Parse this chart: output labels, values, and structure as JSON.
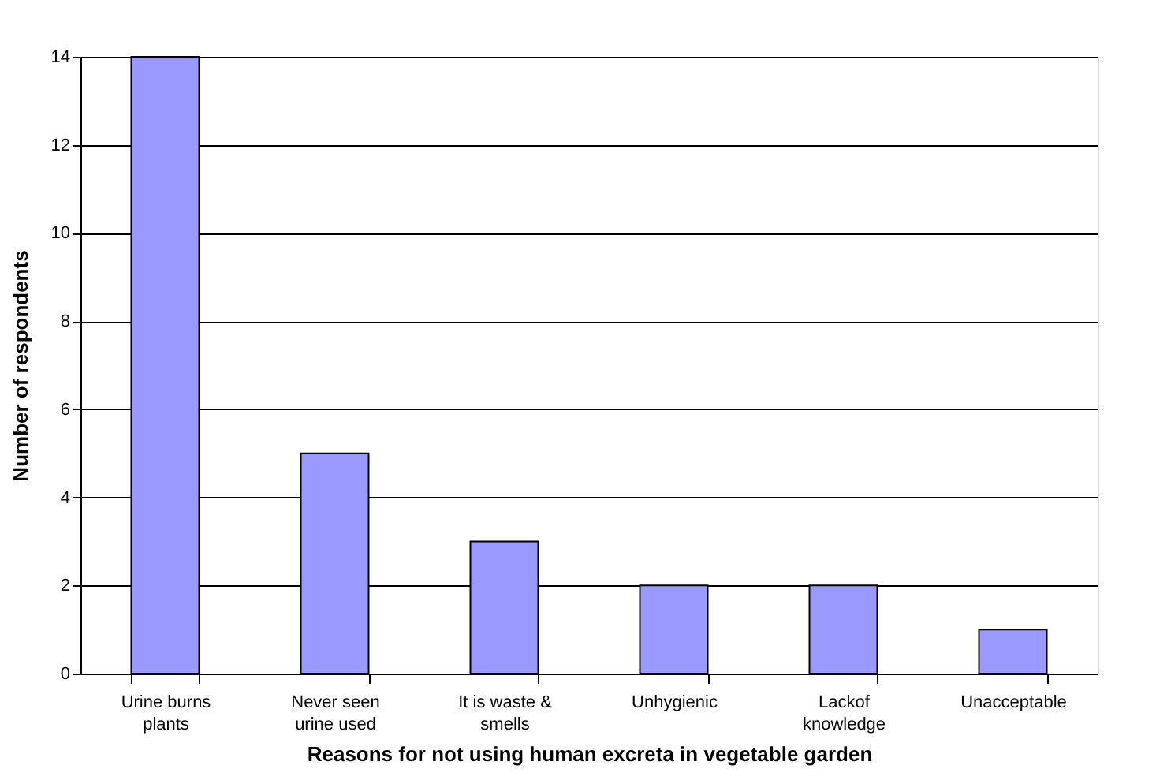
{
  "chart_data": {
    "type": "bar",
    "xlabel": "Reasons for not using human excreta in vegetable garden",
    "ylabel": "Number of respondents",
    "categories": [
      "Urine burns plants",
      "Never seen urine used",
      "It is waste & smells",
      "Unhygienic",
      "Lackof knowledge",
      "Unacceptable"
    ],
    "values": [
      14,
      5,
      3,
      2,
      2,
      1
    ],
    "color": "#9999ff",
    "ylim": [
      0,
      14
    ],
    "yticks": [
      0,
      2,
      4,
      6,
      8,
      10,
      12,
      14
    ],
    "grid": "y"
  }
}
